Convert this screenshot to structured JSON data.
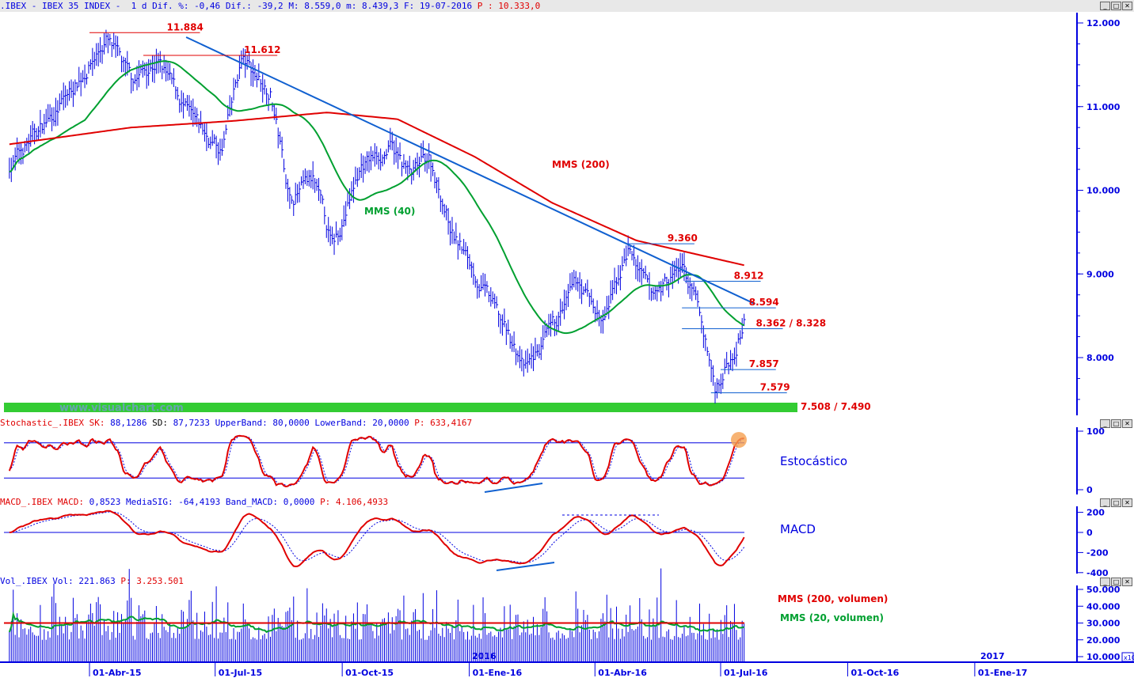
{
  "header": {
    "symbol": ".IBEX - IBEX 35 INDEX -",
    "period": "1 d",
    "dif_pct_label": "Dif. %:",
    "dif_pct": "-0,46",
    "dif_label": "Dif.:",
    "dif": "-39,2",
    "max_label": "M:",
    "max": "8.559,0",
    "min_label": "m:",
    "min": "8.439,3",
    "date_label": "F:",
    "date": "19-07-2016",
    "p_label": "P :",
    "p": "10.333,0"
  },
  "stoch_header": {
    "name": "Stochastic_.IBEX",
    "sk_label": "SK:",
    "sk": "88,1286",
    "sd_label": "SD:",
    "sd": "87,7233",
    "ub_label": "UpperBand:",
    "ub": "80,0000",
    "lb_label": "LowerBand:",
    "lb": "20,0000",
    "p_label": "P:",
    "p": "633,4167"
  },
  "macd_header": {
    "name": "MACD_.IBEX",
    "macd_label": "MACD:",
    "macd": "0,8523",
    "sig_label": "MediaSIG:",
    "sig": "-64,4193",
    "band_label": "Band_MACD:",
    "band": "0,0000",
    "p_label": "P:",
    "p": "4.106,4933"
  },
  "vol_header": {
    "name": "Vol_.IBEX",
    "vol_label": "Vol:",
    "vol": "221.863",
    "p_label": "P:",
    "p": "3.253.501"
  },
  "watermark": "www.visualchart.com",
  "annotations": {
    "mms200": "MMS (200)",
    "mms40": "MMS (40)",
    "stoch": "Estocástico",
    "macd": "MACD",
    "vol200": "MMS (200, volumen)",
    "vol20": "MMS (20, volumen)",
    "y2016": "2016",
    "y2017": "2017",
    "x10": "x10"
  },
  "levels": [
    {
      "label": "11.884",
      "price": 11884,
      "from": "2015-04-01",
      "to": "2015-06-20"
    },
    {
      "label": "11.612",
      "price": 11612,
      "from": "2015-05-10",
      "to": "2015-08-15"
    },
    {
      "label": "9.360",
      "price": 9360,
      "from": "2016-04-25",
      "to": "2016-06-12"
    },
    {
      "label": "8.912",
      "price": 8912,
      "from": "2016-06-05",
      "to": "2016-07-30"
    },
    {
      "label": "8.594",
      "price": 8594,
      "from": "2016-06-03",
      "to": "2016-08-10"
    },
    {
      "label": "8.362 / 8.328",
      "price": 8345,
      "from": "2016-06-03",
      "to": "2016-08-15"
    },
    {
      "label": "7.857",
      "price": 7857,
      "from": "2016-07-01",
      "to": "2016-08-10"
    },
    {
      "label": "7.579",
      "price": 7579,
      "from": "2016-06-24",
      "to": "2016-08-18"
    }
  ],
  "support_label": "7.508 / 7.490",
  "colors": {
    "bars": "#0000e0",
    "ma200": "#e00000",
    "ma40": "#00a030",
    "trend": "#1060d0",
    "support": "#33cc33",
    "axis": "#0000e0"
  },
  "chart_data": {
    "type": "ohlc",
    "title": ".IBEX - IBEX 35 INDEX - 1 d",
    "y_ticks": [
      8000,
      9000,
      10000,
      11000,
      12000
    ],
    "y_tick_labels": [
      "8.000",
      "9.000",
      "10.000",
      "11.000",
      "12.000"
    ],
    "ylim": [
      7400,
      12200
    ],
    "x_ticks": [
      {
        "date": "2015-04-01",
        "label": "01-Abr-15"
      },
      {
        "date": "2015-07-01",
        "label": "01-Jul-15"
      },
      {
        "date": "2015-10-01",
        "label": "01-Oct-15"
      },
      {
        "date": "2016-01-01",
        "label": "01-Ene-16"
      },
      {
        "date": "2016-04-01",
        "label": "01-Abr-16"
      },
      {
        "date": "2016-07-01",
        "label": "01-Jul-16"
      },
      {
        "date": "2016-10-01",
        "label": "01-Oct-16"
      },
      {
        "date": "2017-01-01",
        "label": "01-Ene-17"
      }
    ],
    "close_keypoints": [
      [
        "2015-02-02",
        10300
      ],
      [
        "2015-03-15",
        11100
      ],
      [
        "2015-04-13",
        11800
      ],
      [
        "2015-05-01",
        11300
      ],
      [
        "2015-05-20",
        11550
      ],
      [
        "2015-06-15",
        10800
      ],
      [
        "2015-07-06",
        10450
      ],
      [
        "2015-07-20",
        11550
      ],
      [
        "2015-08-10",
        11200
      ],
      [
        "2015-08-24",
        9900
      ],
      [
        "2015-09-10",
        10100
      ],
      [
        "2015-09-24",
        9300
      ],
      [
        "2015-10-15",
        10300
      ],
      [
        "2015-11-05",
        10500
      ],
      [
        "2015-11-20",
        10150
      ],
      [
        "2015-12-03",
        10400
      ],
      [
        "2015-12-20",
        9500
      ],
      [
        "2016-01-15",
        8700
      ],
      [
        "2016-02-11",
        7850
      ],
      [
        "2016-03-01",
        8300
      ],
      [
        "2016-03-20",
        8900
      ],
      [
        "2016-04-07",
        8400
      ],
      [
        "2016-04-25",
        9300
      ],
      [
        "2016-05-12",
        8700
      ],
      [
        "2016-06-03",
        9100
      ],
      [
        "2016-06-16",
        8500
      ],
      [
        "2016-06-27",
        7650
      ],
      [
        "2016-07-08",
        8000
      ],
      [
        "2016-07-19",
        8500
      ]
    ],
    "ma200_keypoints": [
      [
        "2015-02-02",
        10550
      ],
      [
        "2015-05-01",
        10750
      ],
      [
        "2015-07-15",
        10830
      ],
      [
        "2015-09-20",
        10930
      ],
      [
        "2015-11-10",
        10850
      ],
      [
        "2016-01-05",
        10400
      ],
      [
        "2016-03-01",
        9850
      ],
      [
        "2016-05-01",
        9400
      ],
      [
        "2016-07-19",
        9100
      ]
    ],
    "trendline": [
      [
        "2015-06-10",
        11830
      ],
      [
        "2016-07-26",
        8640
      ]
    ],
    "stoch": {
      "upper": 80,
      "lower": 20,
      "ticks": [
        0,
        100
      ]
    },
    "macd": {
      "ticks": [
        -400,
        -200,
        0,
        200
      ]
    },
    "volume": {
      "ticks": [
        10000,
        20000,
        30000,
        40000,
        50000
      ],
      "tick_labels": [
        "10.000",
        "20.000",
        "30.000",
        "40.000",
        "50.000"
      ],
      "ma200": 30000
    }
  }
}
